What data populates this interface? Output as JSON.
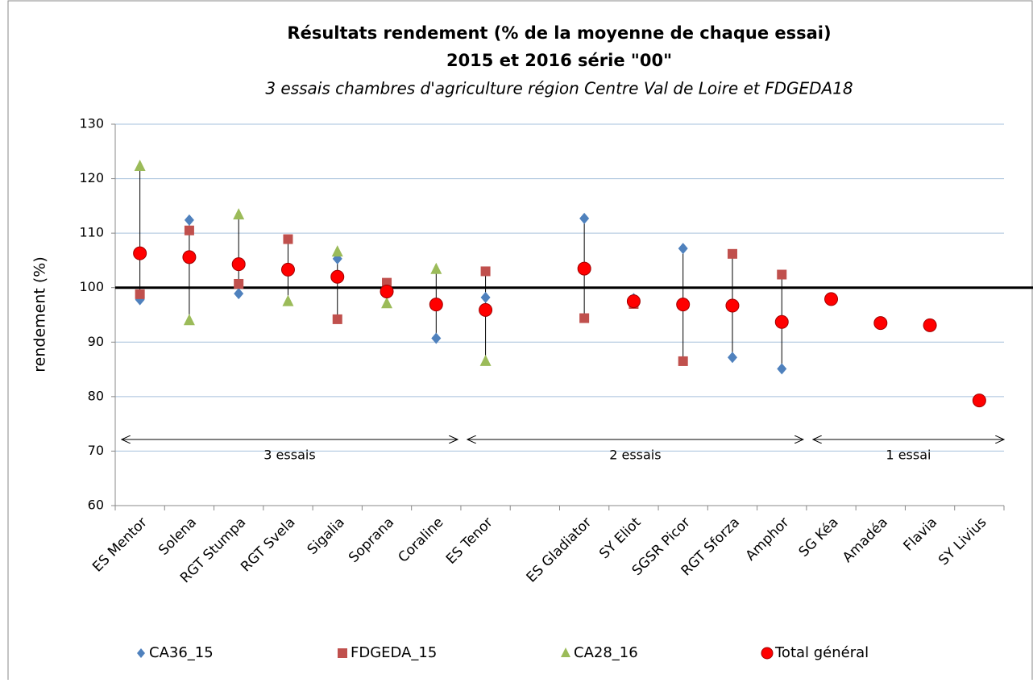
{
  "chart_data": {
    "type": "scatter",
    "title": "Résultats rendement (% de la moyenne de chaque essai)",
    "subtitle": "2015 et 2016 série \"00\"",
    "subtitle2": "3 essais chambres d'agriculture région Centre Val de Loire et FDGEDA18",
    "y_label": "rendement  (%)",
    "categories": [
      "ES Mentor",
      "Solena",
      "RGT Stumpa",
      "RGT Svela",
      "Sigalia",
      "Soprana",
      "Coraline",
      "ES Tenor",
      null,
      "ES Gladiator",
      "SY Eliot",
      "SGSR Picor",
      "RGT Sforza",
      "Amphor",
      "SG Kéa",
      "Amadéa",
      "Flavia",
      "SY Livius"
    ],
    "series": [
      {
        "name": "CA36_15",
        "color": "#4f81bd",
        "marker": "diamond",
        "values": [
          97.8,
          112.4,
          98.9,
          null,
          105.3,
          null,
          90.7,
          98.2,
          null,
          112.7,
          98.0,
          107.2,
          87.2,
          85.1,
          null,
          null,
          null,
          null
        ]
      },
      {
        "name": "FDGEDA_15",
        "color": "#c0504d",
        "marker": "square",
        "values": [
          98.8,
          110.5,
          100.7,
          108.9,
          94.2,
          100.9,
          null,
          103.0,
          null,
          94.4,
          97.0,
          86.5,
          106.2,
          102.4,
          null,
          null,
          null,
          null
        ]
      },
      {
        "name": "CA28_16",
        "color": "#9bbb59",
        "marker": "triangle",
        "values": [
          122.3,
          94.0,
          113.4,
          97.5,
          106.6,
          97.1,
          103.4,
          86.5,
          null,
          null,
          null,
          null,
          null,
          null,
          null,
          null,
          null,
          null
        ]
      },
      {
        "name": "Total général",
        "color": "#ff0000",
        "marker": "circle",
        "values": [
          106.3,
          105.6,
          104.3,
          103.3,
          102.0,
          99.3,
          96.9,
          95.9,
          null,
          103.5,
          97.5,
          96.9,
          96.7,
          93.7,
          97.9,
          93.5,
          93.1,
          79.3
        ]
      }
    ],
    "reference_line": 100,
    "annotations": [
      "3 essais",
      "2 essais",
      "1 essai"
    ],
    "ylim": [
      60,
      130
    ],
    "yticks": [
      60,
      70,
      80,
      90,
      100,
      110,
      120,
      130
    ],
    "grid": true,
    "legend": "bottom"
  }
}
